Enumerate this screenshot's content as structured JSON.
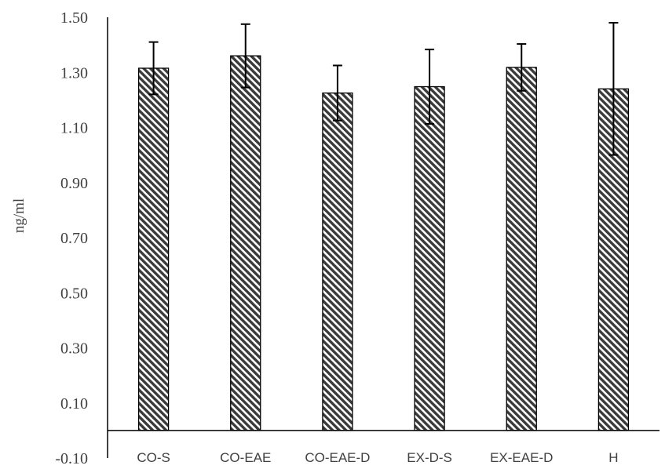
{
  "chart_data": {
    "type": "bar",
    "categories": [
      "CO-S",
      "CO-EAE",
      "CO-EAE-D",
      "EX-D-S",
      "EX-EAE-D",
      "H"
    ],
    "values": [
      1.315,
      1.36,
      1.225,
      1.248,
      1.318,
      1.24
    ],
    "error": [
      0.095,
      0.115,
      0.1,
      0.135,
      0.085,
      0.24
    ],
    "ylabel": "ng/ml",
    "xlabel": "",
    "ylim": [
      -0.1,
      1.5
    ],
    "yticks": [
      "1.50",
      "1.30",
      "1.10",
      "0.90",
      "0.70",
      "0.50",
      "0.30",
      "0.10",
      "-0.10"
    ],
    "grid": false,
    "legend": "none",
    "bar_fill": "hatched-diagonal",
    "colors": {
      "bar_fill": "#3a3a3a",
      "bar_stroke": "#000000",
      "axis": "#000000",
      "text": "#404040"
    }
  }
}
